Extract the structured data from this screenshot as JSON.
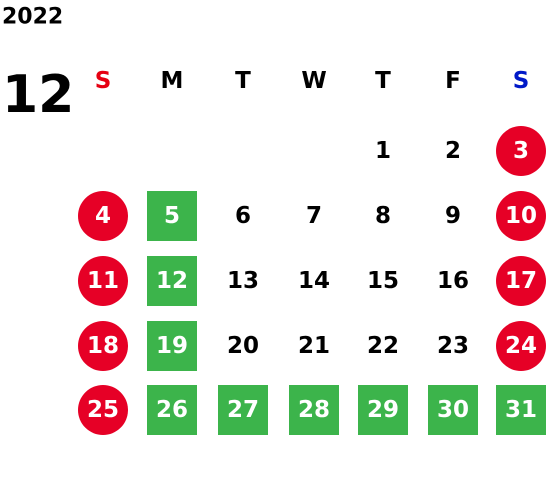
{
  "year": "2022",
  "month": "12",
  "mark_colors": {
    "circle": "#e60026",
    "square": "#3cb44b"
  },
  "weekdays": [
    {
      "label": "S",
      "color": "#e60012"
    },
    {
      "label": "M",
      "color": "#000000"
    },
    {
      "label": "T",
      "color": "#000000"
    },
    {
      "label": "W",
      "color": "#000000"
    },
    {
      "label": "T",
      "color": "#000000"
    },
    {
      "label": "F",
      "color": "#000000"
    },
    {
      "label": "S",
      "color": "#0019c8"
    }
  ],
  "weeks": [
    [
      null,
      null,
      null,
      null,
      {
        "day": "1"
      },
      {
        "day": "2"
      },
      {
        "day": "3",
        "mark": "circle"
      }
    ],
    [
      {
        "day": "4",
        "mark": "circle"
      },
      {
        "day": "5",
        "mark": "square"
      },
      {
        "day": "6"
      },
      {
        "day": "7"
      },
      {
        "day": "8"
      },
      {
        "day": "9"
      },
      {
        "day": "10",
        "mark": "circle"
      }
    ],
    [
      {
        "day": "11",
        "mark": "circle"
      },
      {
        "day": "12",
        "mark": "square"
      },
      {
        "day": "13"
      },
      {
        "day": "14"
      },
      {
        "day": "15"
      },
      {
        "day": "16"
      },
      {
        "day": "17",
        "mark": "circle"
      }
    ],
    [
      {
        "day": "18",
        "mark": "circle"
      },
      {
        "day": "19",
        "mark": "square"
      },
      {
        "day": "20"
      },
      {
        "day": "21"
      },
      {
        "day": "22"
      },
      {
        "day": "23"
      },
      {
        "day": "24",
        "mark": "circle"
      }
    ],
    [
      {
        "day": "25",
        "mark": "circle"
      },
      {
        "day": "26",
        "mark": "square"
      },
      {
        "day": "27",
        "mark": "square"
      },
      {
        "day": "28",
        "mark": "square"
      },
      {
        "day": "29",
        "mark": "square"
      },
      {
        "day": "30",
        "mark": "square"
      },
      {
        "day": "31",
        "mark": "square"
      }
    ]
  ]
}
